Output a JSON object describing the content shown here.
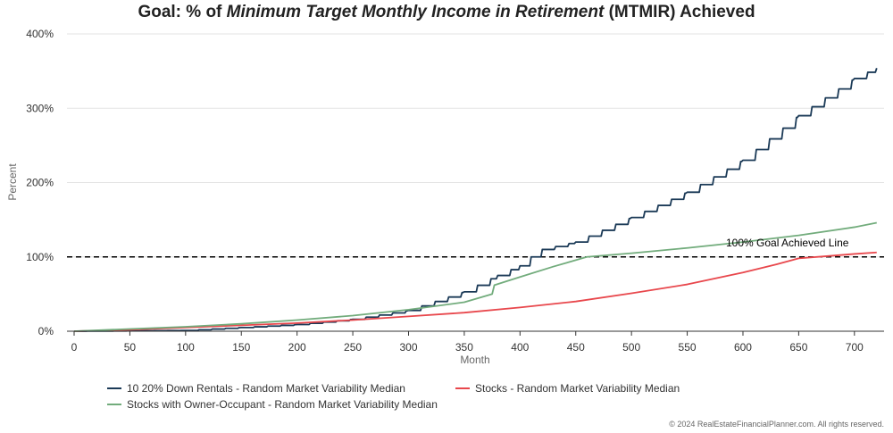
{
  "title": {
    "prefix": "Goal: % of ",
    "italic": "Minimum Target Monthly Income in Retirement",
    "suffix": " (MTMIR) Achieved"
  },
  "chart_data": {
    "type": "line",
    "xlabel": "Month",
    "ylabel": "Percent",
    "xlim": [
      0,
      725
    ],
    "ylim": [
      0,
      400
    ],
    "x_ticks": [
      0,
      50,
      100,
      150,
      200,
      250,
      300,
      350,
      400,
      450,
      500,
      550,
      600,
      650,
      700
    ],
    "y_ticks": [
      0,
      100,
      200,
      300,
      400
    ],
    "y_tick_labels": [
      "0%",
      "100%",
      "200%",
      "300%",
      "400%"
    ],
    "grid": "horizontal",
    "legend_position": "bottom",
    "reference_line": {
      "y": 100,
      "label": "100% Goal Achieved Line",
      "style": "dashed",
      "color": "#000000"
    },
    "series": [
      {
        "name": "10 20% Down Rentals - Random Market Variability Median",
        "color": "#1b3a57",
        "stepped": true,
        "points": [
          [
            0,
            0
          ],
          [
            100,
            1
          ],
          [
            150,
            5
          ],
          [
            200,
            9
          ],
          [
            250,
            16
          ],
          [
            300,
            28
          ],
          [
            350,
            53
          ],
          [
            380,
            75
          ],
          [
            400,
            88
          ],
          [
            410,
            100
          ],
          [
            420,
            110
          ],
          [
            450,
            120
          ],
          [
            500,
            153
          ],
          [
            550,
            187
          ],
          [
            600,
            230
          ],
          [
            650,
            290
          ],
          [
            700,
            340
          ],
          [
            720,
            354
          ]
        ]
      },
      {
        "name": "Stocks - Random Market Variability Median",
        "color": "#e8474c",
        "stepped": false,
        "points": [
          [
            0,
            0
          ],
          [
            50,
            2
          ],
          [
            100,
            5
          ],
          [
            150,
            8
          ],
          [
            200,
            11
          ],
          [
            250,
            15
          ],
          [
            300,
            20
          ],
          [
            350,
            25
          ],
          [
            400,
            32
          ],
          [
            450,
            40
          ],
          [
            500,
            51
          ],
          [
            550,
            63
          ],
          [
            600,
            79
          ],
          [
            630,
            90
          ],
          [
            650,
            98
          ],
          [
            675,
            101
          ],
          [
            700,
            104
          ],
          [
            720,
            106
          ]
        ]
      },
      {
        "name": "Stocks with Owner-Occupant - Random Market Variability Median",
        "color": "#72ac7c",
        "stepped": false,
        "points": [
          [
            0,
            0
          ],
          [
            50,
            3
          ],
          [
            100,
            6
          ],
          [
            150,
            10
          ],
          [
            200,
            15
          ],
          [
            250,
            21
          ],
          [
            300,
            29
          ],
          [
            350,
            39
          ],
          [
            375,
            50
          ],
          [
            377,
            62
          ],
          [
            400,
            73
          ],
          [
            430,
            87
          ],
          [
            460,
            100
          ],
          [
            500,
            105
          ],
          [
            550,
            112
          ],
          [
            600,
            120
          ],
          [
            650,
            129
          ],
          [
            700,
            140
          ],
          [
            720,
            146
          ]
        ]
      }
    ]
  },
  "legend": {
    "items": [
      {
        "label": "10 20% Down Rentals - Random Market Variability Median",
        "color": "#1b3a57"
      },
      {
        "label": "Stocks - Random Market Variability Median",
        "color": "#e8474c"
      },
      {
        "label": "Stocks with Owner-Occupant - Random Market Variability Median",
        "color": "#72ac7c"
      }
    ]
  },
  "copyright": "© 2024 RealEstateFinancialPlanner.com. All rights reserved."
}
